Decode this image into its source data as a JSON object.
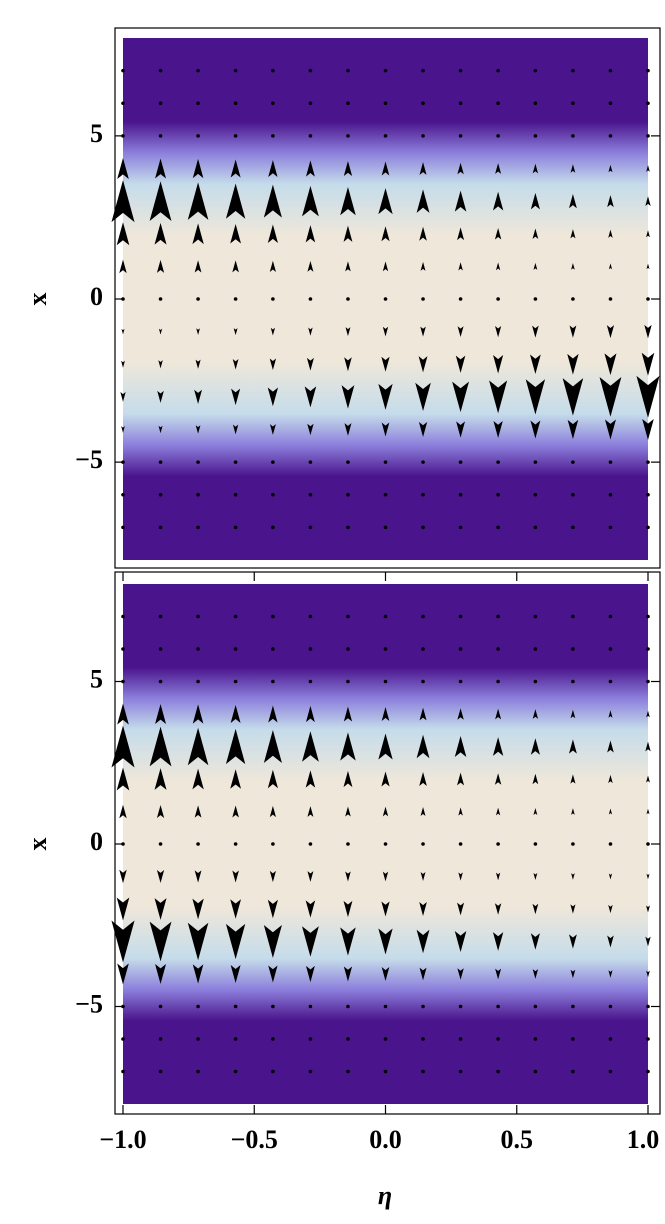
{
  "chart_data": [
    {
      "type": "vector-density",
      "ylabel": "x",
      "ylim": [
        -8,
        8
      ],
      "yticks": [
        {
          "value": -5,
          "label": "−5"
        },
        0,
        5
      ],
      "xlim": [
        -1,
        1
      ],
      "colors": [
        "#4a148c",
        "#8c7fdc",
        "#c5dcea",
        "#efe7da"
      ],
      "arrow_color": "#000000",
      "arrow_eta": [
        -1,
        -0.857,
        -0.714,
        -0.571,
        -0.429,
        -0.286,
        -0.143,
        0,
        0.143,
        0.286,
        0.429,
        0.571,
        0.714,
        0.857,
        1
      ],
      "arrow_x": [
        7,
        6,
        5,
        4,
        3,
        2,
        1,
        0,
        -1,
        -2,
        -3,
        -4,
        -5,
        -6,
        -7
      ],
      "arrows": [
        [
          0,
          0,
          0,
          0,
          0,
          0,
          0,
          0,
          0,
          0,
          0,
          0,
          0,
          0,
          0
        ],
        [
          0,
          0,
          0,
          0,
          0,
          0,
          0,
          0,
          0,
          0,
          0,
          0,
          0,
          0,
          0
        ],
        [
          0,
          0,
          0,
          0,
          0,
          0,
          0,
          0,
          0,
          0,
          0,
          0,
          0,
          0,
          0
        ],
        [
          0.45,
          0.42,
          0.4,
          0.37,
          0.34,
          0.32,
          0.29,
          0.26,
          0.23,
          0.2,
          0.18,
          0.15,
          0.12,
          0.09,
          0.07
        ],
        [
          1,
          0.94,
          0.88,
          0.82,
          0.76,
          0.7,
          0.64,
          0.58,
          0.51,
          0.45,
          0.39,
          0.33,
          0.27,
          0.21,
          0.15
        ],
        [
          0.5,
          0.47,
          0.44,
          0.41,
          0.38,
          0.35,
          0.32,
          0.29,
          0.26,
          0.23,
          0.2,
          0.17,
          0.14,
          0.11,
          0.08
        ],
        [
          0.25,
          0.24,
          0.22,
          0.21,
          0.19,
          0.18,
          0.16,
          0.15,
          0.13,
          0.11,
          0.1,
          0.08,
          0.07,
          0.05,
          0.04
        ],
        [
          0,
          0,
          0,
          0,
          0,
          0,
          0,
          0,
          0,
          0,
          0,
          0,
          0,
          0,
          0
        ],
        [
          -0.04,
          -0.05,
          -0.07,
          -0.08,
          -0.1,
          -0.11,
          -0.13,
          -0.15,
          -0.16,
          -0.18,
          -0.19,
          -0.21,
          -0.22,
          -0.24,
          -0.25
        ],
        [
          -0.08,
          -0.11,
          -0.14,
          -0.17,
          -0.2,
          -0.23,
          -0.26,
          -0.29,
          -0.32,
          -0.35,
          -0.38,
          -0.41,
          -0.44,
          -0.47,
          -0.5
        ],
        [
          -0.15,
          -0.21,
          -0.27,
          -0.33,
          -0.39,
          -0.45,
          -0.51,
          -0.58,
          -0.64,
          -0.7,
          -0.76,
          -0.82,
          -0.88,
          -0.94,
          -1
        ],
        [
          -0.07,
          -0.09,
          -0.12,
          -0.15,
          -0.18,
          -0.2,
          -0.23,
          -0.26,
          -0.29,
          -0.32,
          -0.34,
          -0.37,
          -0.4,
          -0.42,
          -0.45
        ],
        [
          0,
          0,
          0,
          0,
          0,
          0,
          0,
          0,
          0,
          0,
          0,
          0,
          0,
          0,
          0
        ],
        [
          0,
          0,
          0,
          0,
          0,
          0,
          0,
          0,
          0,
          0,
          0,
          0,
          0,
          0,
          0
        ],
        [
          0,
          0,
          0,
          0,
          0,
          0,
          0,
          0,
          0,
          0,
          0,
          0,
          0,
          0,
          0
        ]
      ]
    },
    {
      "type": "vector-density",
      "ylabel": "x",
      "xlabel": "η",
      "ylim": [
        -8,
        8
      ],
      "yticks": [
        {
          "value": -5,
          "label": "−5"
        },
        0,
        5
      ],
      "xlim": [
        -1,
        1
      ],
      "xticks": [
        {
          "value": -1,
          "label": "−1.0"
        },
        {
          "value": -0.5,
          "label": "−0.5"
        },
        {
          "value": 0,
          "label": "0.0"
        },
        {
          "value": 0.5,
          "label": "0.5"
        },
        {
          "value": 1,
          "label": "1.0"
        }
      ],
      "colors": [
        "#4a148c",
        "#8c7fdc",
        "#c5dcea",
        "#efe7da"
      ],
      "arrow_color": "#000000",
      "arrow_eta": [
        -1,
        -0.857,
        -0.714,
        -0.571,
        -0.429,
        -0.286,
        -0.143,
        0,
        0.143,
        0.286,
        0.429,
        0.571,
        0.714,
        0.857,
        1
      ],
      "arrow_x": [
        7,
        6,
        5,
        4,
        3,
        2,
        1,
        0,
        -1,
        -2,
        -3,
        -4,
        -5,
        -6,
        -7
      ],
      "arrows": [
        [
          0,
          0,
          0,
          0,
          0,
          0,
          0,
          0,
          0,
          0,
          0,
          0,
          0,
          0,
          0
        ],
        [
          0,
          0,
          0,
          0,
          0,
          0,
          0,
          0,
          0,
          0,
          0,
          0,
          0,
          0,
          0
        ],
        [
          0,
          0,
          0,
          0,
          0,
          0,
          0,
          0,
          0,
          0,
          0,
          0,
          0,
          0,
          0
        ],
        [
          0.45,
          0.42,
          0.4,
          0.37,
          0.34,
          0.32,
          0.29,
          0.26,
          0.23,
          0.2,
          0.18,
          0.15,
          0.12,
          0.09,
          0.07
        ],
        [
          1,
          0.94,
          0.88,
          0.82,
          0.76,
          0.7,
          0.64,
          0.58,
          0.51,
          0.45,
          0.39,
          0.33,
          0.27,
          0.21,
          0.15
        ],
        [
          0.5,
          0.47,
          0.44,
          0.41,
          0.38,
          0.35,
          0.32,
          0.29,
          0.26,
          0.23,
          0.2,
          0.17,
          0.14,
          0.11,
          0.08
        ],
        [
          0.25,
          0.24,
          0.22,
          0.21,
          0.19,
          0.18,
          0.16,
          0.15,
          0.13,
          0.11,
          0.1,
          0.08,
          0.07,
          0.05,
          0.04
        ],
        [
          0,
          0,
          0,
          0,
          0,
          0,
          0,
          0,
          0,
          0,
          0,
          0,
          0,
          0,
          0
        ],
        [
          -0.25,
          -0.24,
          -0.22,
          -0.21,
          -0.19,
          -0.18,
          -0.16,
          -0.15,
          -0.13,
          -0.11,
          -0.1,
          -0.08,
          -0.07,
          -0.05,
          -0.04
        ],
        [
          -0.5,
          -0.47,
          -0.44,
          -0.41,
          -0.38,
          -0.35,
          -0.32,
          -0.29,
          -0.26,
          -0.23,
          -0.2,
          -0.17,
          -0.14,
          -0.11,
          -0.08
        ],
        [
          -1,
          -0.94,
          -0.88,
          -0.82,
          -0.76,
          -0.7,
          -0.64,
          -0.58,
          -0.51,
          -0.45,
          -0.39,
          -0.33,
          -0.27,
          -0.21,
          -0.15
        ],
        [
          -0.45,
          -0.42,
          -0.4,
          -0.37,
          -0.34,
          -0.32,
          -0.29,
          -0.26,
          -0.23,
          -0.2,
          -0.18,
          -0.15,
          -0.12,
          -0.09,
          -0.07
        ],
        [
          0,
          0,
          0,
          0,
          0,
          0,
          0,
          0,
          0,
          0,
          0,
          0,
          0,
          0,
          0
        ],
        [
          0,
          0,
          0,
          0,
          0,
          0,
          0,
          0,
          0,
          0,
          0,
          0,
          0,
          0,
          0
        ],
        [
          0,
          0,
          0,
          0,
          0,
          0,
          0,
          0,
          0,
          0,
          0,
          0,
          0,
          0,
          0
        ]
      ]
    }
  ]
}
